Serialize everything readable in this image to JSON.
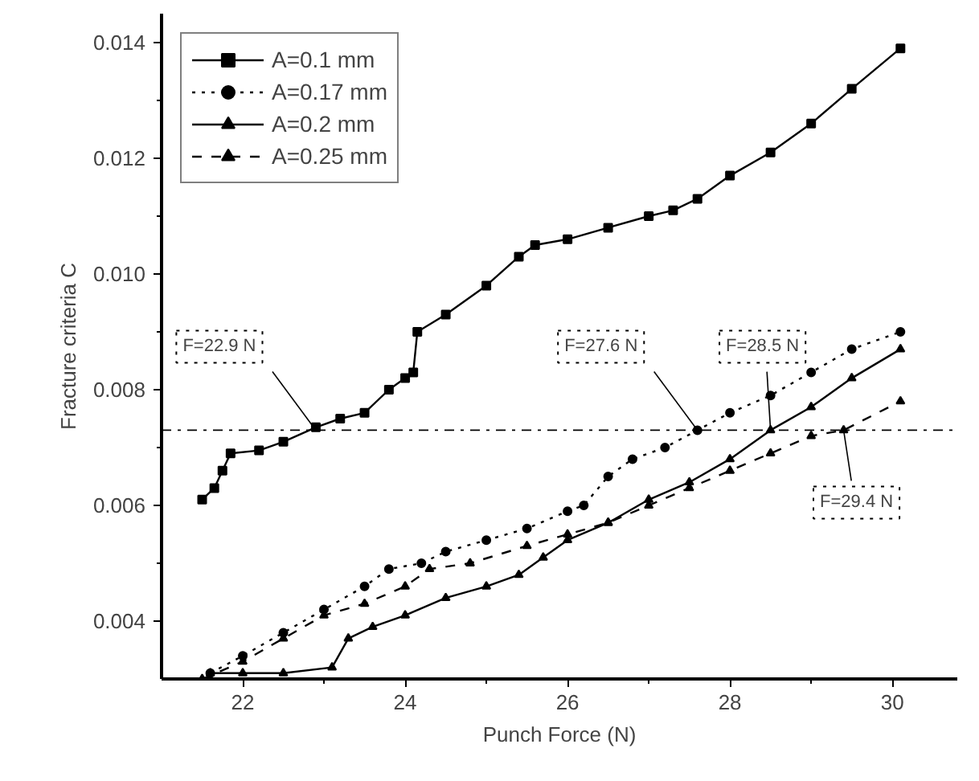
{
  "chart_data": {
    "type": "line",
    "xlabel": "Punch Force (N)",
    "ylabel": "Fracture criteria C",
    "xlim": [
      21,
      30.8
    ],
    "ylim": [
      0.003,
      0.0145
    ],
    "xticks": [
      22,
      24,
      26,
      28,
      30
    ],
    "yticks": [
      0.004,
      0.006,
      0.008,
      {
        "value": 0.01,
        "label": "0.010"
      },
      0.012,
      0.014
    ],
    "grid": false,
    "legend": "top left",
    "ref_lines": [
      {
        "axis": "y",
        "value": 0.0073,
        "color": "#000000",
        "line_style": "dashdot"
      }
    ],
    "annotations": [
      {
        "text": "F=22.9 N",
        "x": 22.9,
        "y": 0.0073
      },
      {
        "text": "F=27.6 N",
        "x": 27.6,
        "y": 0.0073
      },
      {
        "text": "F=28.5 N",
        "x": 28.5,
        "y": 0.0073
      },
      {
        "text": "F=29.4 N",
        "x": 29.4,
        "y": 0.0073
      }
    ],
    "series": [
      {
        "name": "A=0.1 mm",
        "color": "#000000",
        "marker": "square",
        "line_style": "solid",
        "x": [
          21.5,
          21.65,
          21.75,
          21.85,
          22.2,
          22.5,
          22.9,
          23.2,
          23.5,
          23.8,
          24.0,
          24.1,
          24.15,
          24.5,
          25.0,
          25.4,
          25.6,
          26.0,
          26.5,
          27.0,
          27.3,
          27.6,
          28.0,
          28.5,
          29.0,
          29.5,
          30.1
        ],
        "values": [
          0.0061,
          0.0063,
          0.0066,
          0.0069,
          0.00695,
          0.0071,
          0.00735,
          0.0075,
          0.0076,
          0.008,
          0.0082,
          0.0083,
          0.009,
          0.0093,
          0.0098,
          0.0103,
          0.0105,
          0.0106,
          0.0108,
          0.011,
          0.0111,
          0.0113,
          0.0117,
          0.0121,
          0.0126,
          0.0132,
          0.0139
        ]
      },
      {
        "name": "A=0.17 mm",
        "color": "#000000",
        "marker": "circle",
        "line_style": "dotted",
        "x": [
          21.6,
          22,
          22.5,
          23,
          23.5,
          23.8,
          24.2,
          24.5,
          25,
          25.5,
          26,
          26.2,
          26.5,
          26.8,
          27.2,
          27.6,
          28,
          28.5,
          29,
          29.5,
          30.1
        ],
        "values": [
          0.0031,
          0.0034,
          0.0038,
          0.0042,
          0.0046,
          0.0049,
          0.005,
          0.0052,
          0.0054,
          0.0056,
          0.0059,
          0.006,
          0.0065,
          0.0068,
          0.007,
          0.0073,
          0.0076,
          0.0079,
          0.0083,
          0.0087,
          0.009
        ]
      },
      {
        "name": "A=0.2 mm",
        "color": "#000000",
        "marker": "triangle",
        "line_style": "solid",
        "x": [
          21.6,
          22,
          22.5,
          23.1,
          23.3,
          23.6,
          24,
          24.5,
          25,
          25.4,
          25.7,
          26,
          26.5,
          27,
          27.5,
          28,
          28.5,
          29,
          29.5,
          30.1
        ],
        "values": [
          0.0031,
          0.0031,
          0.0031,
          0.0032,
          0.0037,
          0.0039,
          0.0041,
          0.0044,
          0.0046,
          0.0048,
          0.0051,
          0.0054,
          0.0057,
          0.0061,
          0.0064,
          0.0068,
          0.0073,
          0.0077,
          0.0082,
          0.0087
        ]
      },
      {
        "name": "A=0.25 mm",
        "color": "#000000",
        "marker": "triangle",
        "line_style": "dashed",
        "x": [
          21.5,
          22,
          22.5,
          23,
          23.5,
          24,
          24.3,
          24.8,
          25.5,
          26,
          26.5,
          27,
          27.5,
          28,
          28.5,
          29,
          29.4,
          30.1
        ],
        "values": [
          0.003,
          0.0033,
          0.0037,
          0.0041,
          0.0043,
          0.0046,
          0.0049,
          0.005,
          0.0053,
          0.0055,
          0.0057,
          0.006,
          0.0063,
          0.0066,
          0.0069,
          0.0072,
          0.0073,
          0.0078
        ]
      }
    ]
  }
}
